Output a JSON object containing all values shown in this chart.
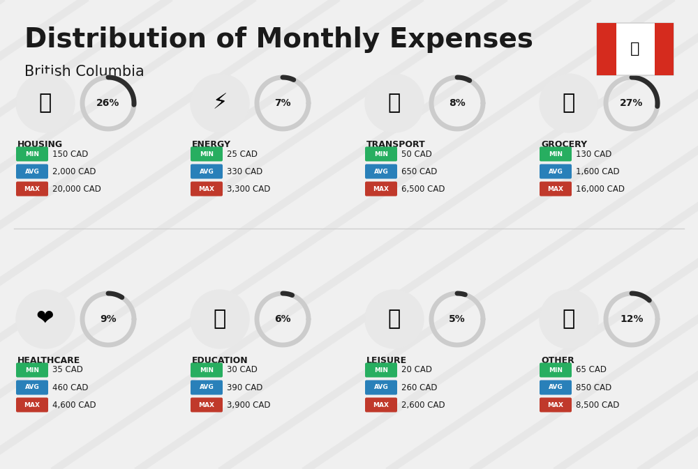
{
  "title": "Distribution of Monthly Expenses",
  "subtitle": "British Columbia",
  "background_color": "#f0f0f0",
  "categories": [
    {
      "name": "HOUSING",
      "icon_label": "🏢",
      "percent": 26,
      "min": "150 CAD",
      "avg": "2,000 CAD",
      "max": "20,000 CAD",
      "row": 0,
      "col": 0
    },
    {
      "name": "ENERGY",
      "icon_label": "⚡",
      "percent": 7,
      "min": "25 CAD",
      "avg": "330 CAD",
      "max": "3,300 CAD",
      "row": 0,
      "col": 1
    },
    {
      "name": "TRANSPORT",
      "icon_label": "🚌",
      "percent": 8,
      "min": "50 CAD",
      "avg": "650 CAD",
      "max": "6,500 CAD",
      "row": 0,
      "col": 2
    },
    {
      "name": "GROCERY",
      "icon_label": "🛒",
      "percent": 27,
      "min": "130 CAD",
      "avg": "1,600 CAD",
      "max": "16,000 CAD",
      "row": 0,
      "col": 3
    },
    {
      "name": "HEALTHCARE",
      "icon_label": "❤️",
      "percent": 9,
      "min": "35 CAD",
      "avg": "460 CAD",
      "max": "4,600 CAD",
      "row": 1,
      "col": 0
    },
    {
      "name": "EDUCATION",
      "icon_label": "🎓",
      "percent": 6,
      "min": "30 CAD",
      "avg": "390 CAD",
      "max": "3,900 CAD",
      "row": 1,
      "col": 1
    },
    {
      "name": "LEISURE",
      "icon_label": "🛍️",
      "percent": 5,
      "min": "20 CAD",
      "avg": "260 CAD",
      "max": "2,600 CAD",
      "row": 1,
      "col": 2
    },
    {
      "name": "OTHER",
      "icon_label": "💰",
      "percent": 12,
      "min": "65 CAD",
      "avg": "850 CAD",
      "max": "8,500 CAD",
      "row": 1,
      "col": 3
    }
  ],
  "min_color": "#2ecc40",
  "avg_color": "#2980b9",
  "max_color": "#e74c3c",
  "donut_bg": "#d0d0d0",
  "donut_fg": "#333333",
  "label_colors": {
    "MIN": "#27ae60",
    "AVG": "#2980b9",
    "MAX": "#c0392b"
  }
}
